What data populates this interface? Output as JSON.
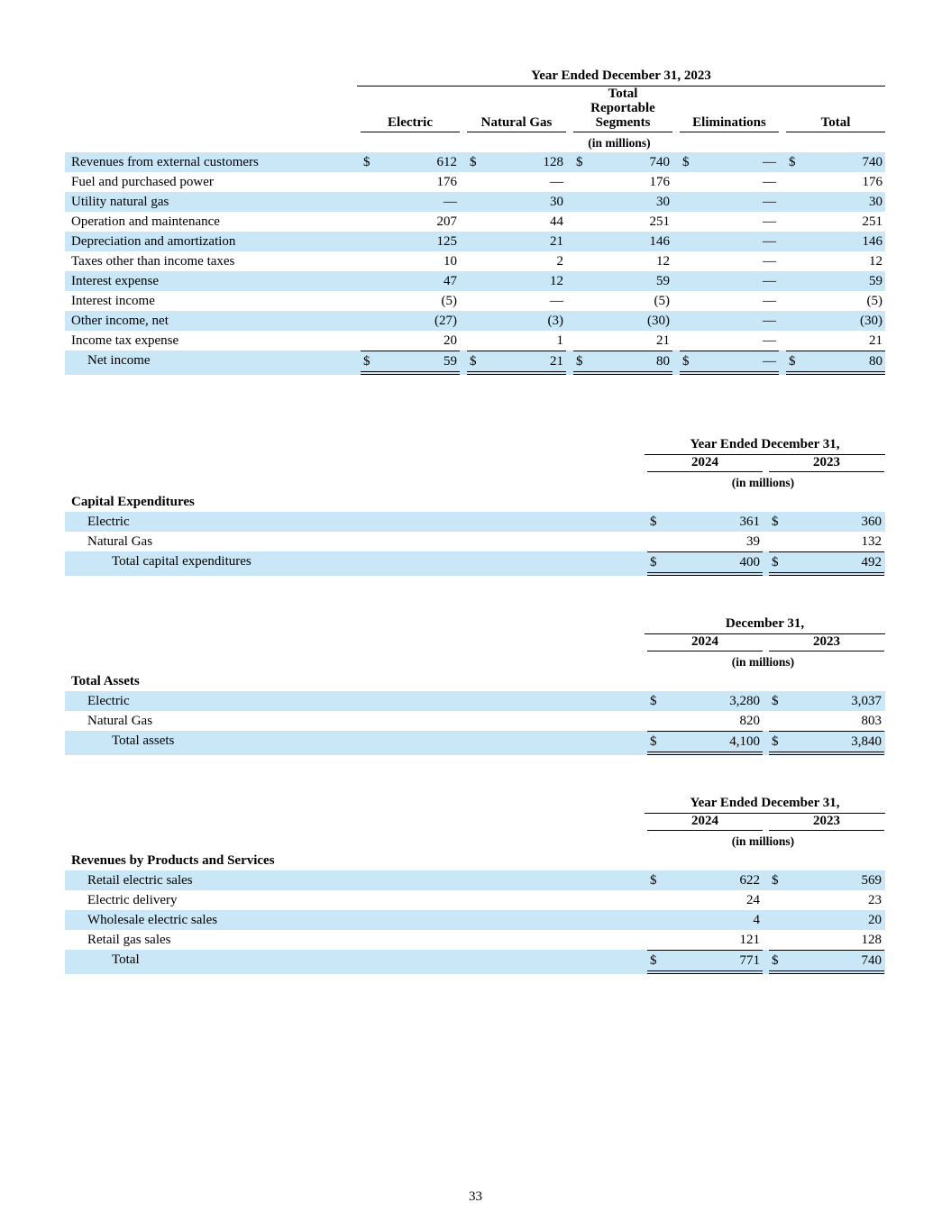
{
  "page_number": "33",
  "shade_color": "#c9e7f6",
  "tables": [
    {
      "name": "segment-results",
      "title": "Year Ended December 31, 2023",
      "columns": [
        "Electric",
        "Natural Gas",
        "Total Reportable Segments",
        "Eliminations",
        "Total"
      ],
      "units_label": "(in millions)",
      "rows": [
        {
          "label": "Revenues from external customers",
          "indent": 0,
          "shaded": true,
          "dollar": true,
          "values": [
            "612",
            "128",
            "740",
            "—",
            "740"
          ]
        },
        {
          "label": "Fuel and purchased power",
          "indent": 0,
          "shaded": false,
          "dollar": false,
          "values": [
            "176",
            "—",
            "176",
            "—",
            "176"
          ]
        },
        {
          "label": "Utility natural gas",
          "indent": 0,
          "shaded": true,
          "dollar": false,
          "values": [
            "—",
            "30",
            "30",
            "—",
            "30"
          ]
        },
        {
          "label": "Operation and maintenance",
          "indent": 0,
          "shaded": false,
          "dollar": false,
          "values": [
            "207",
            "44",
            "251",
            "—",
            "251"
          ]
        },
        {
          "label": "Depreciation and amortization",
          "indent": 0,
          "shaded": true,
          "dollar": false,
          "values": [
            "125",
            "21",
            "146",
            "—",
            "146"
          ]
        },
        {
          "label": "Taxes other than income taxes",
          "indent": 0,
          "shaded": false,
          "dollar": false,
          "values": [
            "10",
            "2",
            "12",
            "—",
            "12"
          ]
        },
        {
          "label": "Interest expense",
          "indent": 0,
          "shaded": true,
          "dollar": false,
          "values": [
            "47",
            "12",
            "59",
            "—",
            "59"
          ]
        },
        {
          "label": "Interest income",
          "indent": 0,
          "shaded": false,
          "dollar": false,
          "values": [
            "(5)",
            "—",
            "(5)",
            "—",
            "(5)"
          ]
        },
        {
          "label": "Other income, net",
          "indent": 0,
          "shaded": true,
          "dollar": false,
          "values": [
            "(27)",
            "(3)",
            "(30)",
            "—",
            "(30)"
          ]
        },
        {
          "label": "Income tax expense",
          "indent": 0,
          "shaded": false,
          "dollar": false,
          "values": [
            "20",
            "1",
            "21",
            "—",
            "21"
          ]
        },
        {
          "label": "Net income",
          "indent": 1,
          "shaded": true,
          "dollar": true,
          "total": true,
          "values": [
            "59",
            "21",
            "80",
            "—",
            "80"
          ]
        }
      ]
    },
    {
      "name": "capital-expenditures",
      "title": "Year Ended December 31,",
      "columns": [
        "2024",
        "2023"
      ],
      "units_label": "(in millions)",
      "rows": [
        {
          "label": "Capital Expenditures",
          "section": true,
          "indent": 0,
          "shaded": false,
          "values": []
        },
        {
          "label": "Electric",
          "indent": 1,
          "shaded": true,
          "dollar": true,
          "values": [
            "361",
            "360"
          ]
        },
        {
          "label": "Natural Gas",
          "indent": 1,
          "shaded": false,
          "dollar": false,
          "values": [
            "39",
            "132"
          ]
        },
        {
          "label": "Total capital expenditures",
          "indent": 2,
          "shaded": true,
          "dollar": true,
          "total": true,
          "values": [
            "400",
            "492"
          ]
        }
      ]
    },
    {
      "name": "total-assets",
      "title": "December 31,",
      "columns": [
        "2024",
        "2023"
      ],
      "units_label": "(in millions)",
      "rows": [
        {
          "label": "Total Assets",
          "section": true,
          "indent": 0,
          "shaded": false,
          "values": []
        },
        {
          "label": "Electric",
          "indent": 1,
          "shaded": true,
          "dollar": true,
          "values": [
            "3,280",
            "3,037"
          ]
        },
        {
          "label": "Natural Gas",
          "indent": 1,
          "shaded": false,
          "dollar": false,
          "values": [
            "820",
            "803"
          ]
        },
        {
          "label": "Total assets",
          "indent": 2,
          "shaded": true,
          "dollar": true,
          "total": true,
          "values": [
            "4,100",
            "3,840"
          ]
        }
      ]
    },
    {
      "name": "revenues-by-products",
      "title": "Year Ended December 31,",
      "columns": [
        "2024",
        "2023"
      ],
      "units_label": "(in millions)",
      "rows": [
        {
          "label": "Revenues by Products and Services",
          "section": true,
          "indent": 0,
          "shaded": false,
          "values": []
        },
        {
          "label": "Retail electric sales",
          "indent": 1,
          "shaded": true,
          "dollar": true,
          "values": [
            "622",
            "569"
          ]
        },
        {
          "label": "Electric delivery",
          "indent": 1,
          "shaded": false,
          "dollar": false,
          "values": [
            "24",
            "23"
          ]
        },
        {
          "label": "Wholesale electric sales",
          "indent": 1,
          "shaded": true,
          "dollar": false,
          "values": [
            "4",
            "20"
          ]
        },
        {
          "label": "Retail gas sales",
          "indent": 1,
          "shaded": false,
          "dollar": false,
          "values": [
            "121",
            "128"
          ]
        },
        {
          "label": "Total",
          "indent": 2,
          "shaded": true,
          "dollar": true,
          "total": true,
          "values": [
            "771",
            "740"
          ]
        }
      ]
    }
  ]
}
